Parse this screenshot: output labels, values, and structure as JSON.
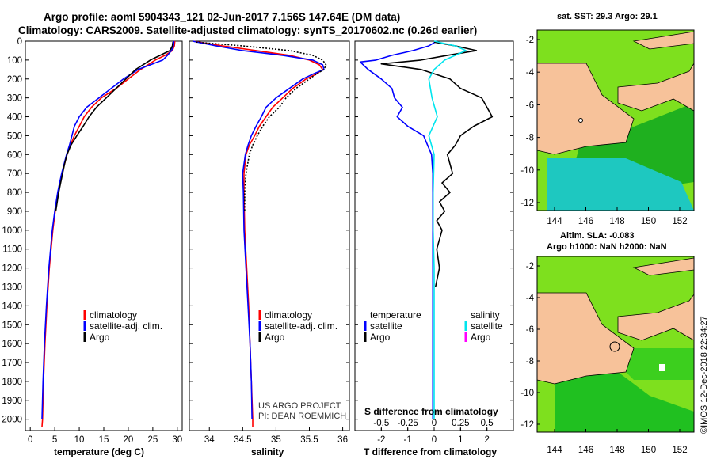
{
  "title_line1": "Argo profile: aoml 5904343_121 02-Jun-2017 7.156S 147.64E (DM data)",
  "title_line2": "Climatology: CARS2009. Satellite-adjusted climatology: synTS_20170602.nc (0.26d earlier)",
  "watermark": "©IMOS 12-Dec-2018 22:34:27",
  "credit_line1": "US ARGO PROJECT",
  "credit_line2": "PI: DEAN ROEMMICH",
  "map1_title": "sat. SST: 29.3 Argo: 29.1",
  "map2_title_line1": "Altim. SLA: -0.083",
  "map2_title_line2": "Argo h1000: NaN h2000: NaN",
  "map_xticks": [
    "144",
    "146",
    "148",
    "150",
    "152"
  ],
  "map_yticks": [
    "-2",
    "-4",
    "-6",
    "-8",
    "-10",
    "-12"
  ],
  "colors": {
    "climatology": "#ff0000",
    "satellite": "#0000ff",
    "argo": "#000000",
    "sal_satellite": "#00e5ee",
    "sal_argo": "#ff00ff",
    "land": "#f7c29a",
    "sea_green": "#1fb01f",
    "sea_cyan": "#1ec8c0",
    "sea_lime": "#7ee01e"
  },
  "chart_data": [
    {
      "type": "line",
      "name": "temperature",
      "xlabel": "temperature (deg C)",
      "ylabel": "",
      "xlim": [
        -1,
        31
      ],
      "ylim": [
        2060,
        0
      ],
      "xticks": [
        0,
        5,
        10,
        15,
        20,
        25,
        30
      ],
      "yticks": [
        0,
        100,
        200,
        300,
        400,
        500,
        600,
        700,
        800,
        900,
        1000,
        1100,
        1200,
        1300,
        1400,
        1500,
        1600,
        1700,
        1800,
        1900,
        2000
      ],
      "legend": [
        "climatology",
        "satellite-adj. clim.",
        "Argo"
      ],
      "series": [
        {
          "name": "climatology",
          "depth": [
            0,
            25,
            50,
            75,
            100,
            125,
            150,
            200,
            250,
            300,
            350,
            400,
            450,
            500,
            550,
            600,
            700,
            800,
            900,
            1000,
            1200,
            1400,
            1600,
            1800,
            2000,
            2040
          ],
          "values": [
            29.5,
            29.4,
            29.0,
            27.5,
            25.5,
            24.0,
            22.5,
            20.0,
            17.5,
            14.5,
            12.5,
            11.0,
            10.0,
            9.0,
            8.2,
            7.5,
            6.5,
            5.7,
            5.1,
            4.6,
            3.9,
            3.4,
            3.0,
            2.7,
            2.5,
            2.4
          ]
        },
        {
          "name": "satellite-adj. clim.",
          "depth": [
            0,
            25,
            50,
            75,
            100,
            125,
            150,
            200,
            250,
            300,
            350,
            400,
            450,
            500,
            550,
            600,
            700,
            800,
            900,
            1000,
            1200,
            1400,
            1600,
            1800,
            2000
          ],
          "values": [
            29.3,
            29.2,
            28.8,
            28.0,
            27.0,
            24.5,
            22.0,
            19.0,
            16.5,
            14.0,
            11.5,
            10.0,
            9.0,
            8.5,
            8.0,
            7.4,
            6.4,
            5.6,
            5.0,
            4.5,
            3.8,
            3.3,
            2.9,
            2.6,
            2.4
          ]
        },
        {
          "name": "Argo",
          "depth": [
            5,
            25,
            50,
            75,
            100,
            125,
            150,
            200,
            250,
            300,
            350,
            400,
            450,
            500,
            550,
            600,
            650,
            700,
            800,
            900
          ],
          "values": [
            29.1,
            29.0,
            28.5,
            26.5,
            24.5,
            23.0,
            21.5,
            19.5,
            17.5,
            15.5,
            13.5,
            12.0,
            10.8,
            9.5,
            8.3,
            7.5,
            7.0,
            6.6,
            5.8,
            5.2
          ]
        }
      ]
    },
    {
      "type": "line",
      "name": "salinity",
      "xlabel": "salinity",
      "xlim": [
        33.7,
        36.1
      ],
      "ylim": [
        2060,
        0
      ],
      "xticks": [
        34,
        34.5,
        35,
        35.5,
        36
      ],
      "xtick_labels": [
        "34",
        "34.5",
        "35",
        "35.5",
        "36"
      ],
      "legend": [
        "climatology",
        "satellite-adj. clim.",
        "Argo"
      ],
      "series": [
        {
          "name": "climatology",
          "depth": [
            0,
            25,
            50,
            75,
            100,
            125,
            150,
            175,
            200,
            250,
            300,
            350,
            400,
            450,
            500,
            550,
            600,
            700,
            800,
            1000,
            1200,
            1400,
            1600,
            1800,
            2000,
            2040
          ],
          "values": [
            33.75,
            34.2,
            34.7,
            35.2,
            35.5,
            35.65,
            35.7,
            35.6,
            35.45,
            35.25,
            35.1,
            34.95,
            34.85,
            34.75,
            34.68,
            34.6,
            34.55,
            34.52,
            34.52,
            34.53,
            34.56,
            34.59,
            34.61,
            34.63,
            34.65,
            34.65
          ]
        },
        {
          "name": "satellite-adj. clim.",
          "depth": [
            0,
            25,
            50,
            75,
            100,
            125,
            150,
            175,
            200,
            250,
            300,
            350,
            400,
            450,
            500,
            550,
            600,
            700,
            800,
            1000,
            1200,
            1400,
            1600,
            1800,
            2000
          ],
          "values": [
            33.75,
            34.1,
            34.5,
            35.1,
            35.55,
            35.7,
            35.72,
            35.55,
            35.4,
            35.2,
            35.0,
            34.85,
            34.78,
            34.7,
            34.63,
            34.58,
            34.54,
            34.5,
            34.51,
            34.52,
            34.55,
            34.58,
            34.61,
            34.63,
            34.64
          ]
        },
        {
          "name": "Argo",
          "depth": [
            5,
            25,
            50,
            75,
            100,
            125,
            150,
            175,
            200,
            250,
            300,
            350,
            400,
            450,
            500,
            550,
            600,
            700,
            800,
            900
          ],
          "values": [
            33.8,
            34.5,
            35.2,
            35.55,
            35.7,
            35.75,
            35.72,
            35.6,
            35.5,
            35.3,
            35.15,
            35.05,
            34.9,
            34.8,
            34.72,
            34.65,
            34.6,
            34.55,
            34.53,
            34.53
          ]
        }
      ]
    },
    {
      "type": "line",
      "name": "difference",
      "xlabel": "T difference from climatology",
      "x2label": "S difference from climatology",
      "xlim": [
        -3,
        3
      ],
      "ylim": [
        2060,
        0
      ],
      "xticks": [
        -2,
        -1,
        0,
        1,
        2
      ],
      "xtick_labels": [
        "-2",
        "-1",
        "0",
        "1",
        "2"
      ],
      "x2ticks": [
        -0.5,
        -0.25,
        0,
        0.25,
        0.5
      ],
      "x2tick_labels": [
        "-0.5",
        "-0.25",
        "0",
        "0.25",
        "0.5"
      ],
      "legend_left_title": "temperature",
      "legend_right_title": "salinity",
      "legend": [
        "satellite",
        "Argo"
      ],
      "series": [
        {
          "name": "T satellite",
          "depth": [
            0,
            25,
            50,
            75,
            100,
            110,
            150,
            200,
            250,
            300,
            350,
            400,
            450,
            500,
            600,
            700,
            800,
            1000,
            1200,
            1400,
            1600,
            1800,
            2000
          ],
          "values": [
            0.1,
            -0.2,
            -0.8,
            -1.6,
            -2.2,
            -2.8,
            -2.5,
            -2.0,
            -1.6,
            -1.5,
            -1.2,
            -1.4,
            -1.0,
            -0.4,
            -0.1,
            -0.05,
            -0.05,
            -0.05,
            -0.05,
            -0.05,
            -0.05,
            -0.05,
            -0.05
          ]
        },
        {
          "name": "T Argo",
          "depth": [
            5,
            25,
            50,
            75,
            100,
            120,
            150,
            200,
            250,
            300,
            350,
            400,
            450,
            500,
            550,
            600,
            650,
            700,
            750,
            800,
            850,
            900,
            950,
            1000,
            1100,
            1200,
            1300
          ],
          "values": [
            0.0,
            0.8,
            1.6,
            0.5,
            -0.5,
            -2.0,
            -0.5,
            0.6,
            1.0,
            1.8,
            2.0,
            2.2,
            1.5,
            1.0,
            0.8,
            0.5,
            0.6,
            0.7,
            0.3,
            0.6,
            0.2,
            0.4,
            0.1,
            0.3,
            0.1,
            0.2,
            0.05
          ]
        },
        {
          "name": "S satellite",
          "depth": [
            0,
            25,
            50,
            75,
            100,
            150,
            200,
            300,
            400,
            500,
            600,
            800,
            1000,
            1200,
            1400,
            1600,
            1800,
            2000
          ],
          "values": [
            0.0,
            0.2,
            0.3,
            0.2,
            0.1,
            0.0,
            -0.05,
            -0.02,
            0.03,
            -0.05,
            0.0,
            -0.01,
            -0.01,
            0.0,
            0.0,
            0.0,
            0.0,
            0.0
          ]
        }
      ]
    }
  ]
}
